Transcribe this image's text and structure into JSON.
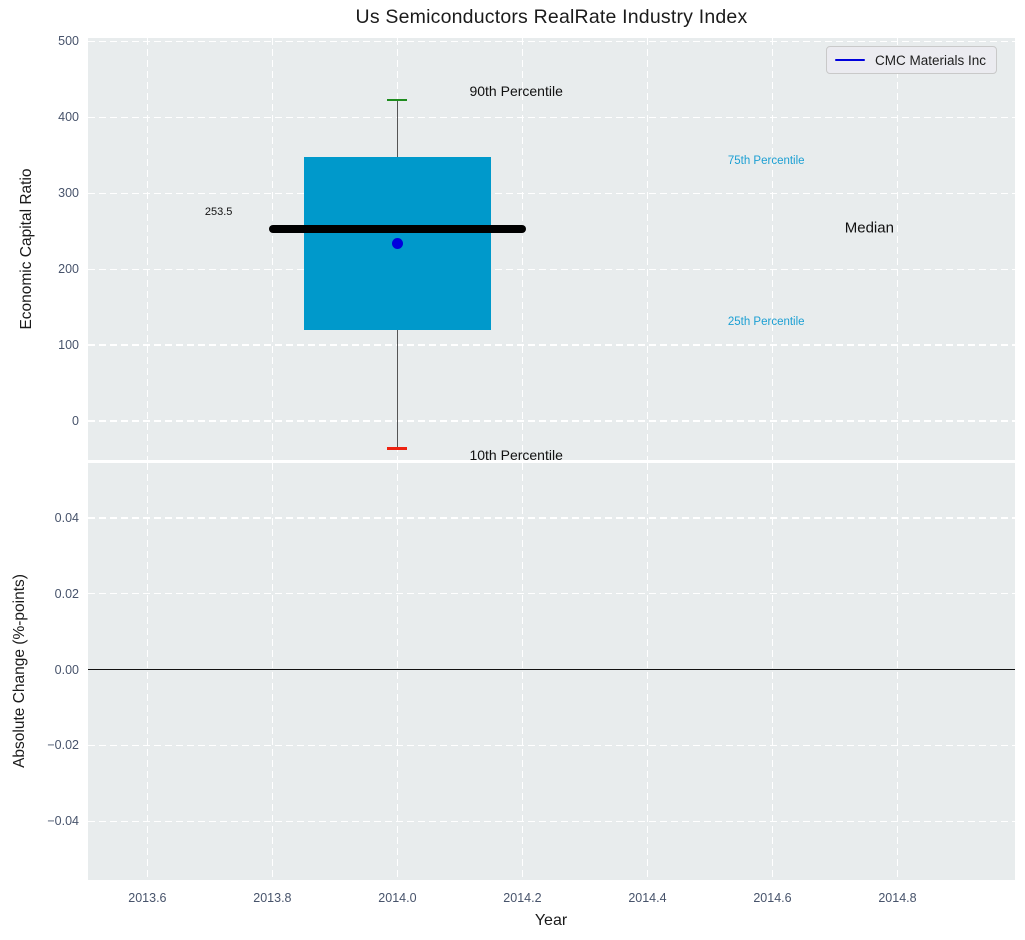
{
  "title": "Us Semiconductors RealRate Industry Index",
  "legend": {
    "label": "CMC Materials Inc"
  },
  "colors": {
    "box_fill": "#0099cb",
    "median_line": "#000000",
    "whisker": "#555555",
    "cap_top": "#1e8c1e",
    "cap_bottom": "#ee2211",
    "company_point": "#0000dd",
    "percentile_text": "#1b9fd3",
    "annotation_text": "#111111",
    "axes_background": "#e8eced",
    "gridline": "#ffffff",
    "tick_text": "#47536b",
    "zero_line": "#111111"
  },
  "chart_data": [
    {
      "type": "boxplot",
      "title": "Us Semiconductors RealRate Industry Index",
      "ylabel": "Economic Capital Ratio",
      "xlim": [
        2013.505,
        2014.988
      ],
      "ylim": [
        -51.3,
        504.6
      ],
      "grid": true,
      "yticks": [
        0,
        100,
        200,
        300,
        400,
        500
      ],
      "ytick_labels": [
        "0",
        "100",
        "200",
        "300",
        "400",
        "500"
      ],
      "xticks": [
        2013.6,
        2013.8,
        2014.0,
        2014.2,
        2014.4,
        2014.6,
        2014.8
      ],
      "box": {
        "x_center": 2014.0,
        "box_left": 2013.85,
        "box_right": 2014.15,
        "q1": 120,
        "median": 253.5,
        "q3": 348,
        "whisker_low": -36,
        "whisker_high": 423,
        "median_line_left": 2013.795,
        "median_line_right": 2014.205,
        "cap_halfwidth": 0.016
      },
      "point": {
        "x": 2014.0,
        "y": 234,
        "series": "CMC Materials Inc"
      },
      "annotations": [
        {
          "text": "253.5",
          "x": 2013.714,
          "y": 275,
          "color": "#111111",
          "size": 11
        },
        {
          "text": "90th Percentile",
          "x": 2014.19,
          "y": 435,
          "color": "#111111",
          "size": 14
        },
        {
          "text": "10th Percentile",
          "x": 2014.19,
          "y": -45,
          "color": "#111111",
          "size": 14
        },
        {
          "text": "75th Percentile",
          "x": 2014.59,
          "y": 343,
          "color": "#1b9fd3",
          "size": 11.5
        },
        {
          "text": "25th Percentile",
          "x": 2014.59,
          "y": 130,
          "color": "#1b9fd3",
          "size": 11.5
        },
        {
          "text": "Median",
          "x": 2014.755,
          "y": 254,
          "color": "#111111",
          "size": 15
        }
      ],
      "legend": {
        "entries": [
          "CMC Materials Inc"
        ],
        "position": "upper right",
        "line_color": "#0000dd"
      }
    },
    {
      "type": "line",
      "ylabel": "Absolute Change (%-points)",
      "xlabel": "Year",
      "xlim": [
        2013.505,
        2014.988
      ],
      "ylim": [
        -0.0555,
        0.0545
      ],
      "grid": true,
      "yticks": [
        -0.04,
        -0.02,
        0.0,
        0.02,
        0.04
      ],
      "ytick_labels": [
        "−0.04",
        "−0.02",
        "0.00",
        "0.02",
        "0.04"
      ],
      "xticks": [
        2013.6,
        2013.8,
        2014.0,
        2014.2,
        2014.4,
        2014.6,
        2014.8
      ],
      "xtick_labels": [
        "2013.6",
        "2013.8",
        "2014.0",
        "2014.2",
        "2014.4",
        "2014.6",
        "2014.8"
      ],
      "series": [],
      "zero_line": 0.0
    }
  ]
}
